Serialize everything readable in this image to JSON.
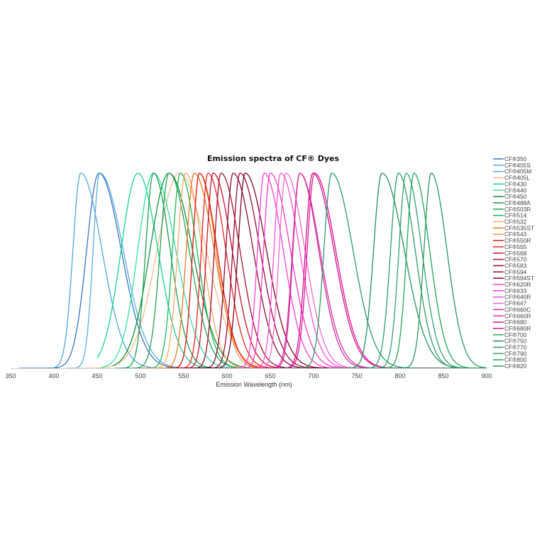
{
  "chart_data": {
    "type": "line",
    "title": "Emission spectra of CF® Dyes",
    "xlabel": "Emission Wavelength (nm)",
    "ylabel": "",
    "xlim": [
      350,
      900
    ],
    "ylim": [
      0,
      1
    ],
    "xticks": [
      "350",
      "400",
      "450",
      "500",
      "550",
      "600",
      "650",
      "700",
      "750",
      "800",
      "850",
      "900"
    ],
    "grid": false,
    "legend_position": "right",
    "series": [
      {
        "name": "CF®350",
        "color": "#3a72bd",
        "peak": 452,
        "wl": 22,
        "wr": 40,
        "start": 360,
        "end": 640
      },
      {
        "name": "CF®405S",
        "color": "#4fa6d8",
        "peak": 431,
        "wl": 14,
        "wr": 38,
        "start": 397,
        "end": 640
      },
      {
        "name": "CF®405M",
        "color": "#5aaedc",
        "peak": 453,
        "wl": 12,
        "wr": 42,
        "start": 415,
        "end": 700
      },
      {
        "name": "CF®405L",
        "color": "#f9b98a",
        "peak": 545,
        "wl": 40,
        "wr": 48,
        "start": 420,
        "end": 800
      },
      {
        "name": "CF®430",
        "color": "#13d18f",
        "peak": 497,
        "wl": 30,
        "wr": 36,
        "start": 450,
        "end": 720
      },
      {
        "name": "CF®440",
        "color": "#2ee0a8",
        "peak": 515,
        "wl": 28,
        "wr": 40,
        "start": 455,
        "end": 720
      },
      {
        "name": "CF®450",
        "color": "#0f8f3a",
        "peak": 533,
        "wl": 34,
        "wr": 42,
        "start": 468,
        "end": 800
      },
      {
        "name": "CF®488A",
        "color": "#1a9e50",
        "peak": 515,
        "wl": 14,
        "wr": 30,
        "start": 470,
        "end": 720
      },
      {
        "name": "CF®503R",
        "color": "#23a057",
        "peak": 533,
        "wl": 16,
        "wr": 36,
        "start": 480,
        "end": 750
      },
      {
        "name": "CF®514",
        "color": "#19b85a",
        "peak": 546,
        "wl": 14,
        "wr": 30,
        "start": 490,
        "end": 740
      },
      {
        "name": "CF®532",
        "color": "#f8a865",
        "peak": 552,
        "wl": 14,
        "wr": 30,
        "start": 500,
        "end": 760
      },
      {
        "name": "CF®535ST",
        "color": "#e8771a",
        "peak": 562,
        "wl": 14,
        "wr": 36,
        "start": 500,
        "end": 780
      },
      {
        "name": "CF®543",
        "color": "#f29a45",
        "peak": 568,
        "wl": 12,
        "wr": 30,
        "start": 510,
        "end": 780
      },
      {
        "name": "CF®550R",
        "color": "#e11a1a",
        "peak": 568,
        "wl": 12,
        "wr": 32,
        "start": 530,
        "end": 800
      },
      {
        "name": "CF®555",
        "color": "#e82626",
        "peak": 578,
        "wl": 12,
        "wr": 32,
        "start": 530,
        "end": 800
      },
      {
        "name": "CF®568",
        "color": "#c8102a",
        "peak": 584,
        "wl": 12,
        "wr": 34,
        "start": 540,
        "end": 800
      },
      {
        "name": "CF®570",
        "color": "#a0102c",
        "peak": 593,
        "wl": 12,
        "wr": 34,
        "start": 545,
        "end": 800
      },
      {
        "name": "CF®583",
        "color": "#8c0a30",
        "peak": 607,
        "wl": 13,
        "wr": 36,
        "start": 550,
        "end": 820
      },
      {
        "name": "CF®594",
        "color": "#960c3a",
        "peak": 615,
        "wl": 13,
        "wr": 36,
        "start": 560,
        "end": 820
      },
      {
        "name": "CF®594ST",
        "color": "#7a0620",
        "peak": 621,
        "wl": 13,
        "wr": 38,
        "start": 560,
        "end": 820
      },
      {
        "name": "CF®620R",
        "color": "#ff3fd0",
        "peak": 643,
        "wl": 12,
        "wr": 34,
        "start": 595,
        "end": 850
      },
      {
        "name": "CF®633",
        "color": "#f838c8",
        "peak": 650,
        "wl": 12,
        "wr": 36,
        "start": 600,
        "end": 850
      },
      {
        "name": "CF®640R",
        "color": "#ff50d8",
        "peak": 662,
        "wl": 12,
        "wr": 34,
        "start": 610,
        "end": 850
      },
      {
        "name": "CF®647",
        "color": "#f06ad2",
        "peak": 668,
        "wl": 12,
        "wr": 34,
        "start": 615,
        "end": 850
      },
      {
        "name": "CF®660C",
        "color": "#d82aa4",
        "peak": 684,
        "wl": 12,
        "wr": 34,
        "start": 630,
        "end": 880
      },
      {
        "name": "CF®660R",
        "color": "#d0379e",
        "peak": 684,
        "wl": 13,
        "wr": 36,
        "start": 630,
        "end": 880
      },
      {
        "name": "CF®680",
        "color": "#c8168c",
        "peak": 699,
        "wl": 13,
        "wr": 38,
        "start": 640,
        "end": 900
      },
      {
        "name": "CF®680R",
        "color": "#e0119a",
        "peak": 701,
        "wl": 13,
        "wr": 38,
        "start": 640,
        "end": 900
      },
      {
        "name": "CF®700",
        "color": "#2b9a66",
        "peak": 721,
        "wl": 14,
        "wr": 38,
        "start": 660,
        "end": 900
      },
      {
        "name": "CF®750",
        "color": "#23915c",
        "peak": 779,
        "wl": 15,
        "wr": 40,
        "start": 720,
        "end": 900
      },
      {
        "name": "CF®770",
        "color": "#2a9c68",
        "peak": 798,
        "wl": 14,
        "wr": 30,
        "start": 740,
        "end": 900
      },
      {
        "name": "CF®790",
        "color": "#30a06e",
        "peak": 807,
        "wl": 13,
        "wr": 28,
        "start": 760,
        "end": 900
      },
      {
        "name": "CF®800",
        "color": "#1fa55a",
        "peak": 816,
        "wl": 13,
        "wr": 28,
        "start": 770,
        "end": 900
      },
      {
        "name": "CF®820",
        "color": "#2a9563",
        "peak": 836,
        "wl": 13,
        "wr": 28,
        "start": 785,
        "end": 900
      }
    ]
  }
}
